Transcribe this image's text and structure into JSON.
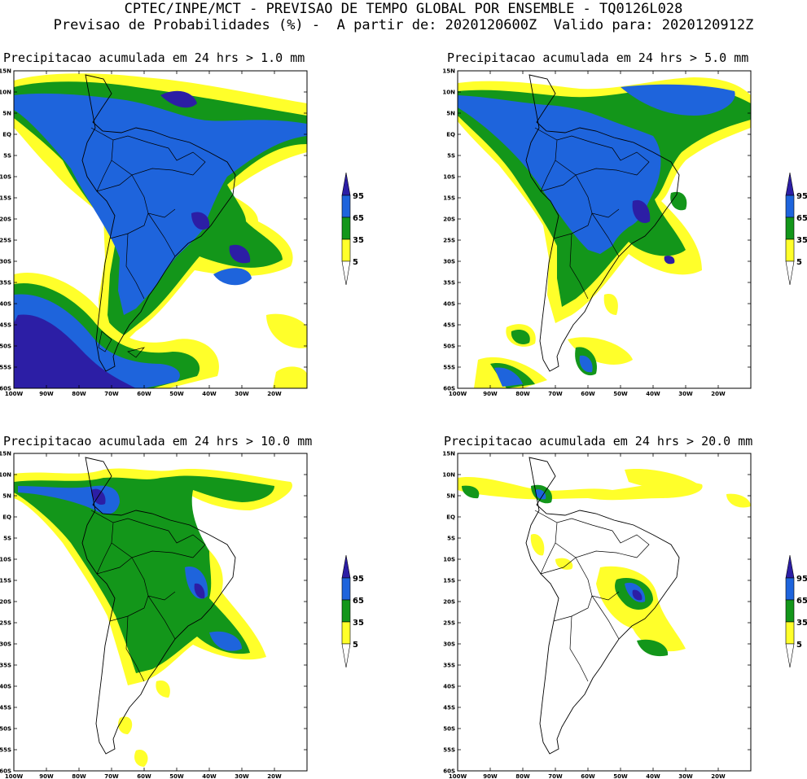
{
  "header": {
    "line1": "CPTEC/INPE/MCT - PREVISAO DE TEMPO GLOBAL POR ENSEMBLE - TQ0126L028",
    "line2": "Previsao de Probabilidades (%) -  A partir de: 2020120600Z  Valido para: 2020120912Z"
  },
  "axes": {
    "lat_labels": [
      "15N",
      "10N",
      "5N",
      "EQ",
      "5S",
      "10S",
      "15S",
      "20S",
      "25S",
      "30S",
      "35S",
      "40S",
      "45S",
      "50S",
      "55S",
      "60S"
    ],
    "lon_labels": [
      "100W",
      "90W",
      "80W",
      "70W",
      "60W",
      "50W",
      "40W",
      "30W",
      "20W"
    ]
  },
  "legend": {
    "levels": [
      "5",
      "35",
      "65",
      "95"
    ],
    "colors": {
      "low": "#ffff2a",
      "mid": "#13961a",
      "high": "#1e64dc",
      "top": "#2c1ea5"
    }
  },
  "panels": [
    {
      "title": "Precipitacao acumulada em 24 hrs > 1.0 mm"
    },
    {
      "title": "Precipitacao acumulada em 24 hrs > 5.0 mm"
    },
    {
      "title": "Precipitacao acumulada em 24 hrs > 10.0 mm"
    },
    {
      "title": "Precipitacao acumulada em 24 hrs > 20.0 mm"
    }
  ]
}
